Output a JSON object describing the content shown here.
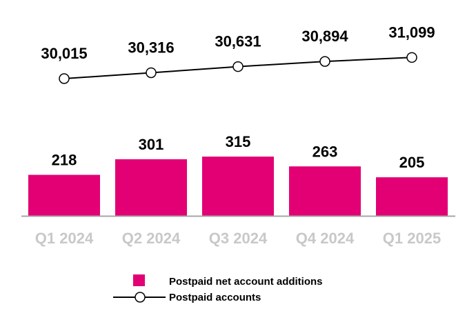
{
  "chart_data": {
    "type": "bar+line",
    "categories": [
      "Q1 2024",
      "Q2 2024",
      "Q3 2024",
      "Q4 2024",
      "Q1 2025"
    ],
    "series": [
      {
        "name": "Postpaid net account additions",
        "type": "bar",
        "values": [
          218,
          301,
          315,
          263,
          205
        ],
        "value_labels": [
          "218",
          "301",
          "315",
          "263",
          "205"
        ]
      },
      {
        "name": "Postpaid accounts",
        "type": "line",
        "values": [
          30015,
          30316,
          30631,
          30894,
          31099
        ],
        "value_labels": [
          "30,015",
          "30,316",
          "30,631",
          "30,894",
          "31,099"
        ]
      }
    ],
    "legend_position": "bottom",
    "grid": false,
    "colors": {
      "bar": "#e20074",
      "line": "#000000",
      "tick_label": "#c8c8c8",
      "axis": "#a6a6a6"
    }
  }
}
